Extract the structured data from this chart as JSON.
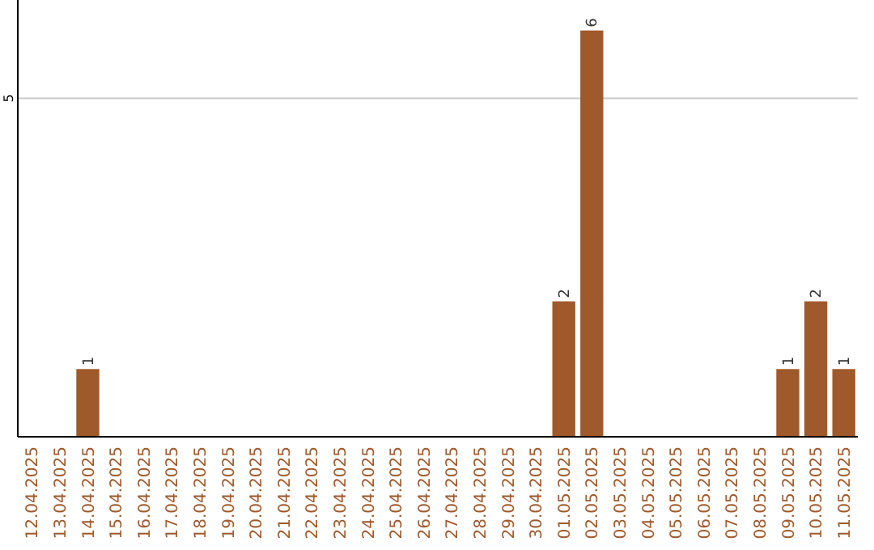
{
  "chart_data": {
    "type": "bar",
    "categories": [
      "12.04.2025",
      "13.04.2025",
      "14.04.2025",
      "15.04.2025",
      "16.04.2025",
      "17.04.2025",
      "18.04.2025",
      "19.04.2025",
      "20.04.2025",
      "21.04.2025",
      "22.04.2025",
      "23.04.2025",
      "24.04.2025",
      "25.04.2025",
      "26.04.2025",
      "27.04.2025",
      "28.04.2025",
      "29.04.2025",
      "30.04.2025",
      "01.05.2025",
      "02.05.2025",
      "03.05.2025",
      "04.05.2025",
      "05.05.2025",
      "06.05.2025",
      "07.05.2025",
      "08.05.2025",
      "09.05.2025",
      "10.05.2025",
      "11.05.2025"
    ],
    "values": [
      0,
      0,
      1,
      0,
      0,
      0,
      0,
      0,
      0,
      0,
      0,
      0,
      0,
      0,
      0,
      0,
      0,
      0,
      0,
      2,
      6,
      0,
      0,
      0,
      0,
      0,
      0,
      1,
      2,
      1
    ],
    "value_labels": [
      null,
      null,
      "1",
      null,
      null,
      null,
      null,
      null,
      null,
      null,
      null,
      null,
      null,
      null,
      null,
      null,
      null,
      null,
      null,
      "2",
      "6",
      null,
      null,
      null,
      null,
      null,
      null,
      "1",
      "2",
      "1"
    ],
    "color": "#a0592a",
    "ylim": [
      0,
      6.45
    ],
    "yticks": [
      5
    ],
    "grid": "y"
  }
}
